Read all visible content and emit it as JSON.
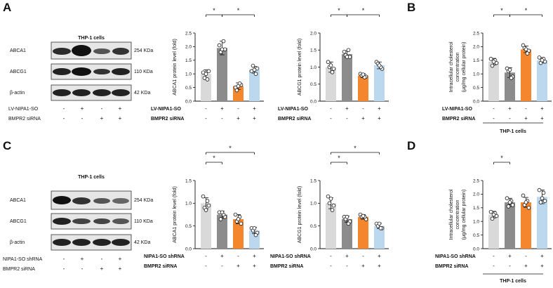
{
  "colors": {
    "light_gray": "#d9d9d9",
    "dark_gray": "#8c8c8c",
    "orange": "#f4862d",
    "light_blue": "#bcd8ee",
    "blot_bg": "#e6e6e6",
    "band": "#1f1f1f"
  },
  "panels": {
    "A": {
      "letter": "A",
      "blot": {
        "title": "THP-1 cells",
        "rows": [
          {
            "protein": "ABCA1",
            "size": "254 KDa"
          },
          {
            "protein": "ABCG1",
            "size": "110 KDa"
          },
          {
            "protein": "β-actin",
            "size": "42 KDa"
          }
        ],
        "treatments": [
          {
            "label": "LV-NIPA1-SO",
            "signs": [
              "-",
              "+",
              "-",
              "+"
            ]
          },
          {
            "label": "BMPR2 siRNA",
            "signs": [
              "-",
              "-",
              "+",
              "+"
            ]
          }
        ]
      }
    },
    "B": {
      "letter": "B",
      "cells_label": "THP-1 cells"
    },
    "C": {
      "letter": "C",
      "blot": {
        "title": "THP-1 cells",
        "rows": [
          {
            "protein": "ABCA1",
            "size": "254 KDa"
          },
          {
            "protein": "ABCG1",
            "size": "110 KDa"
          },
          {
            "protein": "β-actin",
            "size": "42 KDa"
          }
        ],
        "treatments": [
          {
            "label": "NIPA1-SO shRNA",
            "signs": [
              "-",
              "+",
              "-",
              "+"
            ]
          },
          {
            "label": "BMPR2 siRNA",
            "signs": [
              "-",
              "-",
              "+",
              "+"
            ]
          }
        ]
      }
    },
    "D": {
      "letter": "D",
      "cells_label": "THP-1 cells"
    }
  },
  "chart_data": [
    {
      "id": "A1",
      "type": "bar",
      "ylabel": "ABCA1 protein level (fold)",
      "ylim": [
        0,
        2.5
      ],
      "yticks": [
        "0.0",
        "0.5",
        "1.0",
        "1.5",
        "2.0",
        "2.5"
      ],
      "values": [
        1.0,
        1.95,
        0.55,
        1.15
      ],
      "errors": [
        0.15,
        0.25,
        0.12,
        0.12
      ],
      "points": [
        [
          1.05,
          1.1,
          0.85,
          0.8,
          1.0
        ],
        [
          2.05,
          1.9,
          1.8,
          2.2,
          1.9
        ],
        [
          0.5,
          0.6,
          0.4,
          0.65,
          0.55
        ],
        [
          1.1,
          1.2,
          1.3,
          1.0,
          1.15
        ]
      ],
      "treatments": [
        {
          "label": "LV-NIPA1-SO",
          "signs": [
            "-",
            "+",
            "-",
            "+"
          ]
        },
        {
          "label": "BMPR2 siRNA",
          "signs": [
            "-",
            "-",
            "+",
            "+"
          ]
        }
      ],
      "significance": [
        {
          "from": 0,
          "to": 1,
          "label": "*"
        },
        {
          "from": 1,
          "to": 3,
          "label": "*"
        }
      ]
    },
    {
      "id": "A2",
      "type": "bar",
      "ylabel": "ABCG1 protein level (fold)",
      "ylim": [
        0,
        2.0
      ],
      "yticks": [
        "0.0",
        "0.5",
        "1.0",
        "1.5",
        "2.0"
      ],
      "values": [
        1.0,
        1.38,
        0.75,
        1.05
      ],
      "errors": [
        0.15,
        0.1,
        0.06,
        0.1
      ],
      "points": [
        [
          1.15,
          0.95,
          1.0,
          0.85,
          1.05
        ],
        [
          1.45,
          1.3,
          1.35,
          1.5,
          1.3
        ],
        [
          0.8,
          0.72,
          0.75,
          0.7,
          0.78
        ],
        [
          1.15,
          0.95,
          1.1,
          1.0,
          1.05
        ]
      ],
      "treatments": [
        {
          "label": "LV-NIPA1-SO",
          "signs": [
            "-",
            "+",
            "-",
            "+"
          ]
        },
        {
          "label": "BMPR2 siRNA",
          "signs": [
            "-",
            "-",
            "+",
            "+"
          ]
        }
      ],
      "significance": [
        {
          "from": 0,
          "to": 1,
          "label": "*"
        },
        {
          "from": 1,
          "to": 3,
          "label": "*"
        }
      ]
    },
    {
      "id": "B",
      "type": "bar",
      "ylabel": "Intracellular cholesterol concentration (μg/mg cellular protein)",
      "ylim": [
        0,
        2.5
      ],
      "yticks": [
        "0.0",
        "0.5",
        "1.0",
        "1.5",
        "2.0",
        "2.5"
      ],
      "values": [
        1.45,
        1.05,
        1.9,
        1.5
      ],
      "errors": [
        0.12,
        0.18,
        0.12,
        0.1
      ],
      "points": [
        [
          1.55,
          1.4,
          1.3,
          1.5,
          1.45
        ],
        [
          1.2,
          0.9,
          1.1,
          0.85,
          1.15
        ],
        [
          2.05,
          1.85,
          1.95,
          1.75,
          1.9
        ],
        [
          1.6,
          1.45,
          1.4,
          1.55,
          1.5
        ]
      ],
      "treatments": [
        {
          "label": "LV-NIPA1-SO",
          "signs": [
            "-",
            "+",
            "-",
            "+"
          ]
        },
        {
          "label": "BMPR2 siRNA",
          "signs": [
            "-",
            "-",
            "+",
            "+"
          ]
        }
      ],
      "significance": [
        {
          "from": 0,
          "to": 1,
          "label": "*"
        },
        {
          "from": 1,
          "to": 3,
          "label": "*"
        }
      ]
    },
    {
      "id": "C1",
      "type": "bar",
      "ylabel": "ABCA1 protein level (fold)",
      "ylim": [
        0,
        1.5
      ],
      "yticks": [
        "0.0",
        "0.5",
        "1.0",
        "1.5"
      ],
      "values": [
        1.0,
        0.75,
        0.65,
        0.4
      ],
      "errors": [
        0.12,
        0.08,
        0.1,
        0.07
      ],
      "points": [
        [
          1.15,
          0.95,
          0.9,
          1.05,
          0.85
        ],
        [
          0.8,
          0.7,
          0.65,
          0.75,
          0.8
        ],
        [
          0.75,
          0.55,
          0.6,
          0.7,
          0.65
        ],
        [
          0.45,
          0.35,
          0.4,
          0.3,
          0.45
        ]
      ],
      "treatments": [
        {
          "label": "NIPA1-SO shRNA",
          "signs": [
            "-",
            "+",
            "-",
            "+"
          ]
        },
        {
          "label": "BMPR2 siRNA",
          "signs": [
            "-",
            "-",
            "+",
            "+"
          ]
        }
      ],
      "significance": [
        {
          "from": 0,
          "to": 1,
          "label": "*"
        },
        {
          "from": 0,
          "to": 3,
          "label": "*"
        }
      ]
    },
    {
      "id": "C2",
      "type": "bar",
      "ylabel": "ABCG1 protein level (fold)",
      "ylim": [
        0,
        1.5
      ],
      "yticks": [
        "0.0",
        "0.5",
        "1.0",
        "1.5"
      ],
      "values": [
        1.0,
        0.65,
        0.7,
        0.5
      ],
      "errors": [
        0.12,
        0.07,
        0.05,
        0.06
      ],
      "points": [
        [
          1.15,
          0.95,
          1.0,
          0.85,
          1.1
        ],
        [
          0.7,
          0.6,
          0.65,
          0.55,
          0.7
        ],
        [
          0.75,
          0.65,
          0.7,
          0.7,
          0.72
        ],
        [
          0.55,
          0.45,
          0.5,
          0.45,
          0.55
        ]
      ],
      "treatments": [
        {
          "label": "NIPA1-SO shRNA",
          "signs": [
            "-",
            "+",
            "-",
            "+"
          ]
        },
        {
          "label": "BMPR2 siRNA",
          "signs": [
            "-",
            "-",
            "+",
            "+"
          ]
        }
      ],
      "significance": [
        {
          "from": 0,
          "to": 1,
          "label": "*"
        },
        {
          "from": 0,
          "to": 3,
          "label": "*"
        }
      ]
    },
    {
      "id": "D",
      "type": "bar",
      "ylabel": "Intracellular cholesterol concentration (μg/mg cellular protein)",
      "ylim": [
        0,
        2.5
      ],
      "yticks": [
        "0.0",
        "0.5",
        "1.0",
        "1.5",
        "2.0",
        "2.5"
      ],
      "values": [
        1.25,
        1.7,
        1.7,
        1.9
      ],
      "errors": [
        0.12,
        0.15,
        0.18,
        0.25
      ],
      "points": [
        [
          1.35,
          1.2,
          1.1,
          1.3,
          1.25
        ],
        [
          1.85,
          1.6,
          1.55,
          1.75,
          1.7
        ],
        [
          1.95,
          1.5,
          1.6,
          1.75,
          1.7
        ],
        [
          2.15,
          1.75,
          1.7,
          2.05,
          1.85
        ]
      ],
      "treatments": [
        {
          "label": "NIPA1-SO shRNA",
          "signs": [
            "-",
            "+",
            "-",
            "+"
          ]
        },
        {
          "label": "BMPR2 siRNA",
          "signs": [
            "-",
            "-",
            "+",
            "+"
          ]
        }
      ],
      "significance": [
        {
          "from": 0,
          "to": 1,
          "label": "*"
        }
      ]
    }
  ]
}
